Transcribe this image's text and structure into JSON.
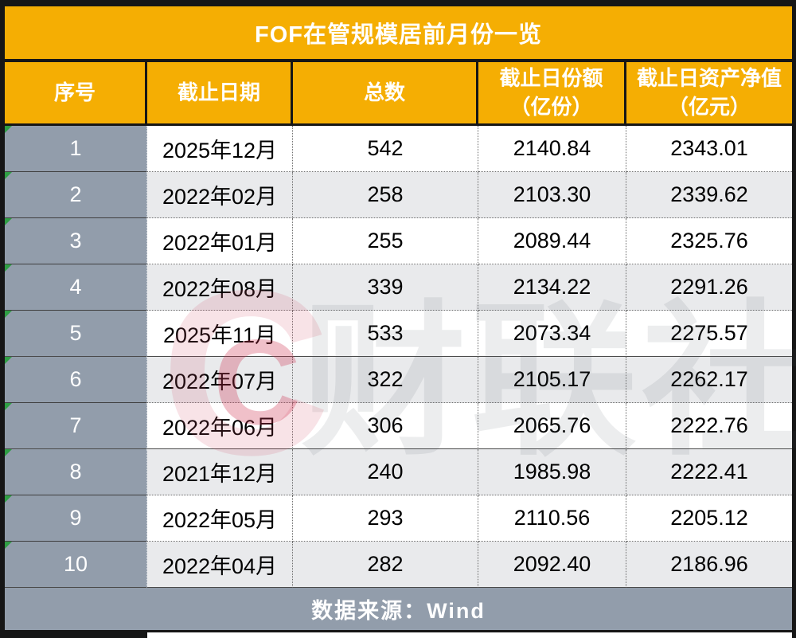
{
  "chart_data": {
    "type": "table",
    "title": "FOF在管规模居前月份一览",
    "columns": [
      "序号",
      "截止日期",
      "总数",
      "截止日份额（亿份）",
      "截止日资产净值（亿元）"
    ],
    "rows": [
      {
        "index": "1",
        "date": "2025年12月",
        "total": "542",
        "share": "2140.84",
        "nav": "2343.01"
      },
      {
        "index": "2",
        "date": "2022年02月",
        "total": "258",
        "share": "2103.30",
        "nav": "2339.62"
      },
      {
        "index": "3",
        "date": "2022年01月",
        "total": "255",
        "share": "2089.44",
        "nav": "2325.76"
      },
      {
        "index": "4",
        "date": "2022年08月",
        "total": "339",
        "share": "2134.22",
        "nav": "2291.26"
      },
      {
        "index": "5",
        "date": "2025年11月",
        "total": "533",
        "share": "2073.34",
        "nav": "2275.57"
      },
      {
        "index": "6",
        "date": "2022年07月",
        "total": "322",
        "share": "2105.17",
        "nav": "2262.17"
      },
      {
        "index": "7",
        "date": "2022年06月",
        "total": "306",
        "share": "2065.76",
        "nav": "2222.76"
      },
      {
        "index": "8",
        "date": "2021年12月",
        "total": "240",
        "share": "1985.98",
        "nav": "2222.41"
      },
      {
        "index": "9",
        "date": "2022年05月",
        "total": "293",
        "share": "2110.56",
        "nav": "2205.12"
      },
      {
        "index": "10",
        "date": "2022年04月",
        "total": "282",
        "share": "2092.40",
        "nav": "2186.96"
      }
    ]
  },
  "footer": {
    "source_label": "数据来源：Wind"
  },
  "watermark": {
    "logo_letter": "C",
    "text": "财联社"
  },
  "colors": {
    "accent_orange": "#F5AE03",
    "gray_column": "#929DAB",
    "row_alt": "#E9EAEC",
    "border_black": "#161616",
    "flag_green": "#2F9E44",
    "watermark_pink": "#D65069"
  }
}
